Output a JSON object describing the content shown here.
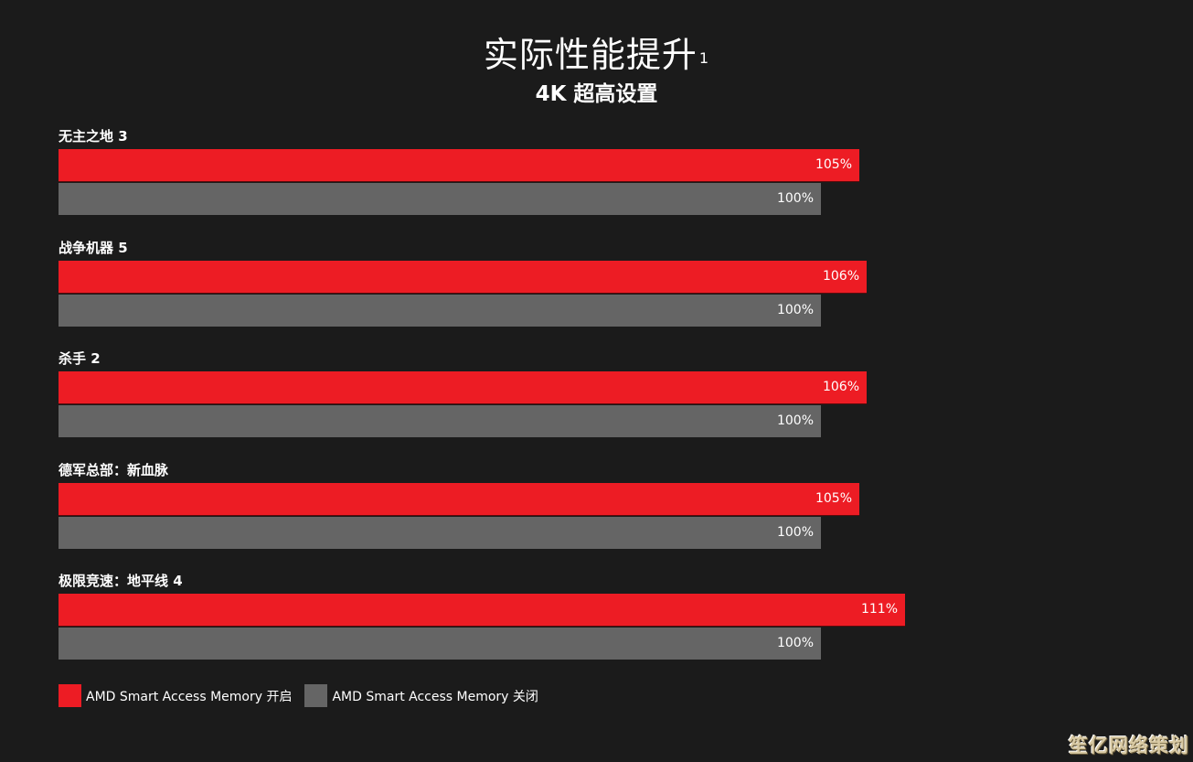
{
  "header": {
    "title": "实际性能提升",
    "title_footnote": "1",
    "subtitle": "4K 超高设置"
  },
  "colors": {
    "background": "#1b1b1b",
    "sam_on": "#ed1c24",
    "sam_off": "#656565"
  },
  "groups": [
    {
      "label": "无主之地 3",
      "on_label": "105%",
      "off_label": "100%"
    },
    {
      "label": "战争机器 5",
      "on_label": "106%",
      "off_label": "100%"
    },
    {
      "label": "杀手 2",
      "on_label": "106%",
      "off_label": "100%"
    },
    {
      "label": "德军总部：新血脉",
      "on_label": "105%",
      "off_label": "100%"
    },
    {
      "label": "极限竞速：地平线 4",
      "on_label": "111%",
      "off_label": "100%"
    }
  ],
  "legend": {
    "on": "AMD Smart Access Memory 开启",
    "off": "AMD Smart Access Memory 关闭"
  },
  "watermark": "笙亿网络策划",
  "chart_data": {
    "type": "bar",
    "orientation": "horizontal",
    "title": "实际性能提升¹",
    "subtitle": "4K 超高设置",
    "categories": [
      "无主之地 3",
      "战争机器 5",
      "杀手 2",
      "德军总部：新血脉",
      "极限竞速：地平线 4"
    ],
    "series": [
      {
        "name": "AMD Smart Access Memory 开启",
        "color": "#ed1c24",
        "values": [
          105,
          106,
          106,
          105,
          111
        ]
      },
      {
        "name": "AMD Smart Access Memory 关闭",
        "color": "#656565",
        "values": [
          100,
          100,
          100,
          100,
          100
        ]
      }
    ],
    "unit": "%",
    "xlabel": "",
    "ylabel": "",
    "grid": false,
    "legend_position": "bottom-left",
    "data_labels": true
  }
}
